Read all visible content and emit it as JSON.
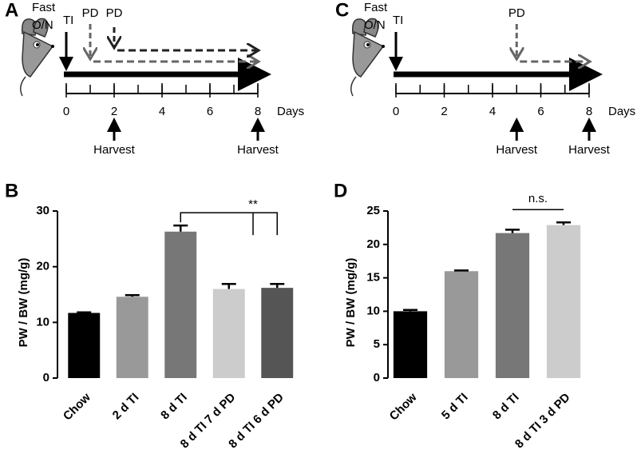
{
  "timelines": [
    {
      "label": "A",
      "fast": [
        "Fast",
        "O/N"
      ],
      "xlim": [
        0,
        8
      ],
      "xticks": [
        0,
        2,
        4,
        6,
        8
      ],
      "unit": "Days",
      "treatment": {
        "label": "TI",
        "day": 0
      },
      "pd": [
        {
          "label": "PD",
          "day": 1,
          "color": "#666666"
        },
        {
          "label": "PD",
          "day": 2,
          "color": "#222222"
        }
      ],
      "harvests": [
        {
          "label": "Harvest",
          "day": 2
        },
        {
          "label": "Harvest",
          "day": 8
        }
      ]
    },
    {
      "label": "C",
      "fast": [
        "Fast",
        "O/N"
      ],
      "xlim": [
        0,
        8
      ],
      "xticks": [
        0,
        2,
        4,
        6,
        8
      ],
      "unit": "Days",
      "treatment": {
        "label": "TI",
        "day": 0
      },
      "pd": [
        {
          "label": "PD",
          "day": 5,
          "color": "#666666"
        }
      ],
      "harvests": [
        {
          "label": "Harvest",
          "day": 5
        },
        {
          "label": "Harvest",
          "day": 8
        }
      ]
    }
  ],
  "chart_data": [
    {
      "type": "bar",
      "panel": "B",
      "ylabel": "PW / BW (mg/g)",
      "categories": [
        "Chow",
        "2 d TI",
        "8 d TI",
        "8 d TI 7 d PD",
        "8 d TI 6 d PD"
      ],
      "values": [
        11.7,
        14.6,
        26.3,
        16.0,
        16.2
      ],
      "errors": [
        0.1,
        0.3,
        1.1,
        0.9,
        0.7
      ],
      "colors": [
        "#000000",
        "#999999",
        "#777777",
        "#cccccc",
        "#555555"
      ],
      "ylim": [
        0,
        30
      ],
      "yticks": [
        0,
        10,
        20,
        30
      ],
      "annotation": {
        "label": "**",
        "between": [
          2,
          4
        ]
      }
    },
    {
      "type": "bar",
      "panel": "D",
      "ylabel": "PW / BW (mg/g)",
      "categories": [
        "Chow",
        "5 d TI",
        "8 d TI",
        "8 d TI 3 d PD"
      ],
      "values": [
        10.0,
        16.0,
        21.7,
        22.9
      ],
      "errors": [
        0.2,
        0.1,
        0.5,
        0.4
      ],
      "colors": [
        "#000000",
        "#999999",
        "#777777",
        "#cccccc"
      ],
      "ylim": [
        0,
        25
      ],
      "yticks": [
        0,
        5,
        10,
        15,
        20,
        25
      ],
      "annotation": {
        "label": "n.s.",
        "between": [
          2,
          3
        ]
      }
    }
  ]
}
